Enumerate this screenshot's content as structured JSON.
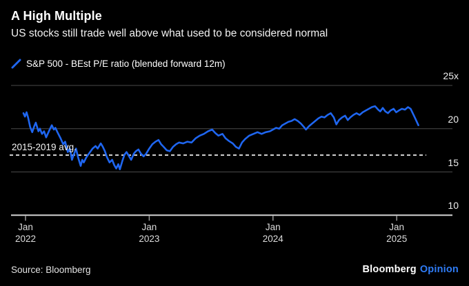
{
  "header": {
    "title": "A High Multiple",
    "subtitle": "US stocks still trade well above what used to be considered normal"
  },
  "legend": {
    "label": "S&P 500 - BEst P/E ratio (blended forward 12m)"
  },
  "footer": {
    "source": "Source: Bloomberg",
    "brand": "Bloomberg",
    "brand_suffix": "Opinion"
  },
  "colors": {
    "background": "#000000",
    "line": "#1f66f0",
    "grid": "#4a4a4a",
    "axis": "#d4d4d4",
    "tick": "#9a9a9a",
    "avg_line": "#ffffff",
    "brand_accent": "#2f7cf6"
  },
  "chart_data": {
    "type": "line",
    "title": "A High Multiple",
    "subtitle": "US stocks still trade well above what used to be considered normal",
    "series_name": "S&P 500 - BEst P/E ratio (blended forward 12m)",
    "x_unit": "months since Jan 2022",
    "grid": true,
    "legend_position": "top-left",
    "y_axis": {
      "range": [
        10,
        25
      ],
      "ticks": [
        25,
        20,
        15,
        10
      ],
      "tick_labels": [
        "25x",
        "20",
        "15",
        "10"
      ]
    },
    "x_axis": {
      "ticks": [
        0,
        12,
        24,
        36
      ],
      "tick_labels": [
        "Jan\n2022",
        "Jan\n2023",
        "Jan\n2024",
        "Jan\n2025"
      ]
    },
    "reference_line": {
      "value": 16.95,
      "label": "2015-2019 avg.",
      "style": "dashed"
    },
    "points": [
      [
        0,
        21.8
      ],
      [
        0.15,
        21.4
      ],
      [
        0.3,
        21.9
      ],
      [
        0.45,
        21.3
      ],
      [
        0.65,
        20.2
      ],
      [
        0.85,
        19.6
      ],
      [
        1.05,
        20.3
      ],
      [
        1.2,
        20.7
      ],
      [
        1.45,
        19.7
      ],
      [
        1.6,
        20.0
      ],
      [
        1.8,
        19.4
      ],
      [
        2.0,
        19.7
      ],
      [
        2.2,
        19.0
      ],
      [
        2.5,
        19.8
      ],
      [
        2.75,
        20.4
      ],
      [
        2.95,
        19.9
      ],
      [
        3.1,
        20.1
      ],
      [
        3.3,
        19.6
      ],
      [
        3.6,
        18.9
      ],
      [
        3.85,
        18.2
      ],
      [
        4.05,
        18.5
      ],
      [
        4.3,
        17.3
      ],
      [
        4.5,
        17.7
      ],
      [
        4.7,
        16.4
      ],
      [
        4.85,
        16.9
      ],
      [
        5.1,
        17.7
      ],
      [
        5.3,
        16.7
      ],
      [
        5.55,
        15.7
      ],
      [
        5.7,
        16.4
      ],
      [
        5.85,
        16.1
      ],
      [
        6.1,
        16.7
      ],
      [
        6.4,
        17.2
      ],
      [
        6.7,
        17.7
      ],
      [
        7.0,
        18.0
      ],
      [
        7.2,
        17.7
      ],
      [
        7.5,
        18.3
      ],
      [
        7.7,
        17.9
      ],
      [
        7.9,
        17.4
      ],
      [
        8.1,
        16.7
      ],
      [
        8.35,
        16.1
      ],
      [
        8.6,
        16.4
      ],
      [
        8.8,
        15.8
      ],
      [
        9.0,
        15.4
      ],
      [
        9.2,
        15.9
      ],
      [
        9.35,
        15.3
      ],
      [
        9.6,
        16.3
      ],
      [
        9.8,
        17.0
      ],
      [
        10.0,
        17.3
      ],
      [
        10.2,
        16.9
      ],
      [
        10.45,
        16.4
      ],
      [
        10.7,
        17.1
      ],
      [
        10.9,
        17.4
      ],
      [
        11.15,
        17.6
      ],
      [
        11.4,
        17.1
      ],
      [
        11.65,
        16.8
      ],
      [
        11.9,
        17.1
      ],
      [
        12.2,
        17.7
      ],
      [
        12.5,
        18.2
      ],
      [
        12.8,
        18.5
      ],
      [
        13.1,
        18.7
      ],
      [
        13.35,
        18.2
      ],
      [
        13.6,
        17.9
      ],
      [
        13.9,
        17.5
      ],
      [
        14.2,
        17.4
      ],
      [
        14.5,
        17.9
      ],
      [
        14.8,
        18.2
      ],
      [
        15.1,
        18.4
      ],
      [
        15.5,
        18.3
      ],
      [
        15.9,
        18.5
      ],
      [
        16.3,
        18.4
      ],
      [
        16.7,
        18.9
      ],
      [
        17.1,
        19.2
      ],
      [
        17.5,
        19.4
      ],
      [
        17.9,
        19.7
      ],
      [
        18.3,
        19.9
      ],
      [
        18.6,
        19.5
      ],
      [
        18.9,
        19.2
      ],
      [
        19.3,
        19.4
      ],
      [
        19.6,
        18.9
      ],
      [
        19.9,
        18.6
      ],
      [
        20.3,
        18.3
      ],
      [
        20.6,
        17.9
      ],
      [
        20.9,
        17.7
      ],
      [
        21.2,
        18.4
      ],
      [
        21.5,
        18.8
      ],
      [
        21.9,
        19.2
      ],
      [
        22.3,
        19.4
      ],
      [
        22.7,
        19.6
      ],
      [
        23.1,
        19.4
      ],
      [
        23.5,
        19.6
      ],
      [
        23.9,
        19.7
      ],
      [
        24.2,
        19.9
      ],
      [
        24.5,
        20.1
      ],
      [
        24.8,
        20.0
      ],
      [
        25.1,
        20.4
      ],
      [
        25.4,
        20.6
      ],
      [
        25.7,
        20.8
      ],
      [
        26.0,
        20.9
      ],
      [
        26.3,
        21.1
      ],
      [
        26.6,
        20.9
      ],
      [
        26.9,
        20.6
      ],
      [
        27.2,
        20.2
      ],
      [
        27.4,
        19.9
      ],
      [
        27.7,
        20.3
      ],
      [
        28.0,
        20.6
      ],
      [
        28.3,
        20.9
      ],
      [
        28.6,
        21.2
      ],
      [
        28.9,
        21.4
      ],
      [
        29.2,
        21.3
      ],
      [
        29.5,
        21.6
      ],
      [
        29.8,
        21.8
      ],
      [
        30.1,
        21.3
      ],
      [
        30.35,
        20.5
      ],
      [
        30.6,
        21.0
      ],
      [
        30.9,
        21.3
      ],
      [
        31.2,
        21.5
      ],
      [
        31.45,
        21.0
      ],
      [
        31.7,
        21.3
      ],
      [
        32.0,
        21.6
      ],
      [
        32.3,
        21.8
      ],
      [
        32.6,
        21.6
      ],
      [
        32.9,
        21.9
      ],
      [
        33.2,
        22.1
      ],
      [
        33.5,
        22.3
      ],
      [
        33.8,
        22.5
      ],
      [
        34.1,
        22.6
      ],
      [
        34.4,
        22.2
      ],
      [
        34.6,
        22.0
      ],
      [
        34.85,
        22.4
      ],
      [
        35.1,
        22.0
      ],
      [
        35.35,
        21.8
      ],
      [
        35.6,
        22.1
      ],
      [
        35.9,
        22.3
      ],
      [
        36.15,
        21.9
      ],
      [
        36.4,
        22.1
      ],
      [
        36.7,
        22.3
      ],
      [
        37.0,
        22.2
      ],
      [
        37.3,
        22.5
      ],
      [
        37.55,
        22.3
      ],
      [
        37.75,
        21.8
      ],
      [
        37.95,
        21.3
      ],
      [
        38.15,
        20.8
      ],
      [
        38.3,
        20.4
      ]
    ]
  }
}
